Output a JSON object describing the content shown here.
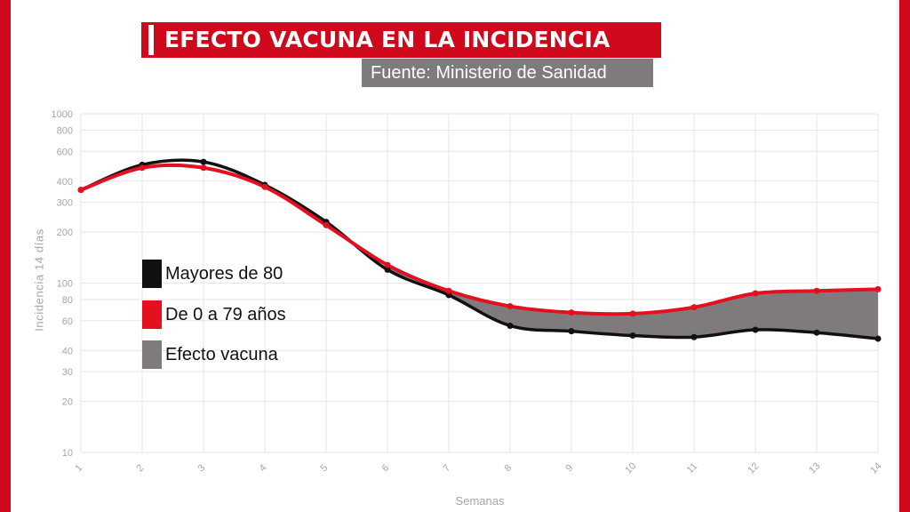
{
  "title": "EFECTO VACUNA EN LA INCIDENCIA",
  "source": "Fuente: Ministerio de Sanidad",
  "colors": {
    "frame": "#d0081b",
    "mayores": "#111111",
    "jovenes": "#e3101f",
    "efecto": "#7f7b7c",
    "grid": "#e6e6e6",
    "axis_text": "#a6a6a6"
  },
  "chart_data": {
    "type": "line",
    "xlabel": "Semanas",
    "ylabel": "Incidencia 14 días",
    "yscale": "log",
    "ylim": [
      10,
      1000
    ],
    "yticks": [
      10,
      20,
      30,
      40,
      60,
      80,
      100,
      200,
      300,
      400,
      600,
      800,
      1000
    ],
    "x": [
      1,
      2,
      3,
      4,
      5,
      6,
      7,
      8,
      9,
      10,
      11,
      12,
      13,
      14
    ],
    "grid": true,
    "legend_position": "left",
    "series": [
      {
        "name": "Mayores de 80",
        "values": [
          355,
          500,
          520,
          380,
          230,
          120,
          85,
          56,
          52,
          49,
          48,
          53,
          51,
          47
        ]
      },
      {
        "name": "De 0 a 79 años",
        "values": [
          355,
          480,
          480,
          370,
          220,
          128,
          90,
          73,
          67,
          66,
          72,
          87,
          90,
          92
        ]
      }
    ],
    "band": {
      "name": "Efecto vacuna",
      "between": [
        "Mayores de 80",
        "De 0 a 79 años"
      ],
      "from_x": 6
    }
  }
}
